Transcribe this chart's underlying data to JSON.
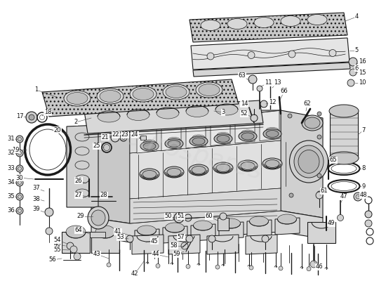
{
  "bg_color": "#ffffff",
  "line_color": "#1a1a1a",
  "label_color": "#111111",
  "label_fontsize": 6.0,
  "watermark_text": "eurospares",
  "watermark_color": "#bbbbbb",
  "figure_width": 5.5,
  "figure_height": 4.0,
  "dpi": 100,
  "engine_body_color": "#e8e8e8",
  "engine_dark_color": "#c8c8c8",
  "engine_mid_color": "#d8d8d8",
  "gasket_hatch_color": "#888888",
  "gasket_bg_color": "#cccccc"
}
